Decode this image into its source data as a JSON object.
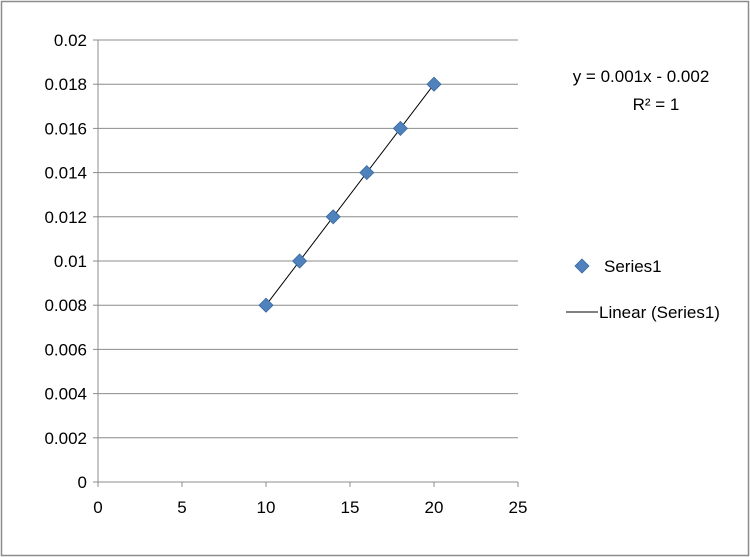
{
  "chart_data": {
    "type": "scatter",
    "title": "",
    "xlabel": "",
    "ylabel": "",
    "xlim": [
      0,
      25
    ],
    "ylim": [
      0,
      0.02
    ],
    "x_ticks": [
      "0",
      "5",
      "10",
      "15",
      "20",
      "25"
    ],
    "y_ticks": [
      "0",
      "0.002",
      "0.004",
      "0.006",
      "0.008",
      "0.01",
      "0.012",
      "0.014",
      "0.016",
      "0.018",
      "0.02"
    ],
    "grid": "horizontal",
    "legend_position": "right",
    "series": [
      {
        "name": "Series1",
        "marker": "diamond",
        "color": "#4f81bd",
        "x": [
          10,
          12,
          14,
          16,
          18,
          20
        ],
        "y": [
          0.008,
          0.01,
          0.012,
          0.014,
          0.016,
          0.018
        ]
      }
    ],
    "trendline": {
      "name": "Linear (Series1)",
      "color": "#000000",
      "slope": 0.001,
      "intercept": -0.002,
      "x_range": [
        10,
        20
      ]
    },
    "annotations": {
      "equation": "y = 0.001x - 0.002",
      "r_squared": "R² = 1"
    },
    "legend": [
      {
        "label": "Series1",
        "symbol": "diamond-marker"
      },
      {
        "label": "Linear (Series1)",
        "symbol": "line"
      }
    ]
  }
}
